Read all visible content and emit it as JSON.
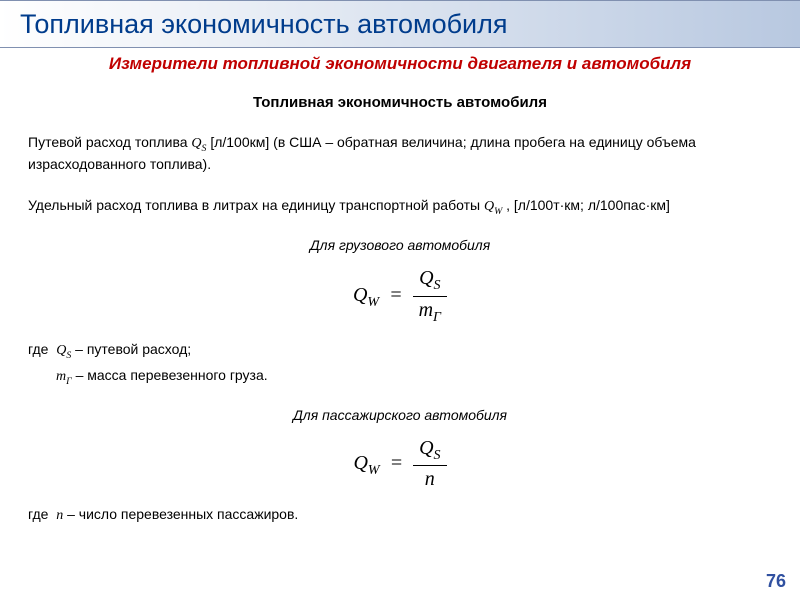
{
  "title": "Топливная экономичность автомобиля",
  "subtitle": "Измерители топливной экономичности двигателя и автомобиля",
  "section_heading": "Топливная экономичность автомобиля",
  "para1_pre": "Путевой расход топлива    ",
  "para1_var": "Qₛ",
  "para1_post": " [л/100км] (в США – обратная величина; длина пробега на единицу объема израсходованного топлива).",
  "para2_pre": "Удельный расход топлива в литрах на единицу транспортной работы ",
  "para2_var": "Q_W",
  "para2_post": " , [л/100т·км; л/100пас·км]",
  "truck_label": "Для грузового автомобиля",
  "formula1": {
    "lhs": "Q",
    "lhs_sub": "W",
    "num": "Q",
    "num_sub": "S",
    "den": "m",
    "den_sub": "Г"
  },
  "where_label": "где",
  "where1_var": "Qₛ",
  "where1_text": " – путевой расход;",
  "where2_var": "m_Г",
  "where2_text": " – масса перевезенного груза.",
  "passenger_label": "Для пассажирского автомобиля",
  "formula2": {
    "lhs": "Q",
    "lhs_sub": "W",
    "num": "Q",
    "num_sub": "S",
    "den": "n"
  },
  "where3_var": "n",
  "where3_text": " – число перевезенных пассажиров.",
  "page_number": "76",
  "colors": {
    "title_color": "#003C8C",
    "subtitle_color": "#c00000",
    "gradient_start": "#ffffff",
    "gradient_end": "#b8c8e0",
    "page_num_color": "#3050a0"
  }
}
